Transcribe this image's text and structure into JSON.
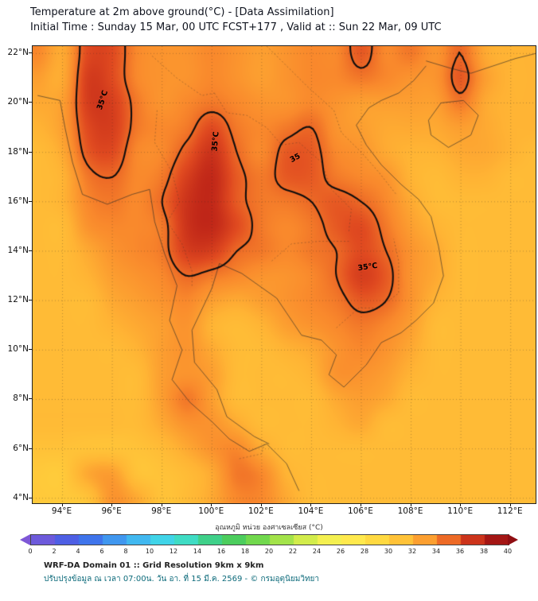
{
  "header": {
    "title_line1": "Temperature at 2m above ground(°C) - [Data Assimilation]",
    "title_line2": "Initial Time : Sunday 15 Mar, 00 UTC FCST+177 , Valid at :: Sun 22 Mar, 09 UTC"
  },
  "footer": {
    "line1": "WRF-DA Domain 01 :: Grid Resolution 9km x 9km",
    "line2": "ปรับปรุงข้อมูล ณ เวลา 07:00น. วัน อา. ที่ 15 มี.ค. 2569 - © กรมอุตุนิยมวิทยา"
  },
  "chart_data": {
    "type": "heatmap",
    "title": "Temperature at 2m above ground(°C)",
    "lon_range": [
      92.8,
      113.0
    ],
    "lat_range": [
      3.8,
      22.3
    ],
    "lon_ticks": [
      94,
      96,
      98,
      100,
      102,
      104,
      106,
      108,
      110,
      112
    ],
    "lon_tick_labels": [
      "94°E",
      "96°E",
      "98°E",
      "100°E",
      "102°E",
      "104°E",
      "106°E",
      "108°E",
      "110°E",
      "112°E"
    ],
    "lat_ticks": [
      4,
      6,
      8,
      10,
      12,
      14,
      16,
      18,
      20,
      22
    ],
    "lat_tick_labels": [
      "4°N",
      "6°N",
      "8°N",
      "10°N",
      "12°N",
      "14°N",
      "16°N",
      "18°N",
      "20°N",
      "22°N"
    ],
    "grid": {
      "lon_start": 93,
      "lon_step": 1,
      "lat_start": 22,
      "lat_step": -1,
      "values": [
        [
          34,
          32.5,
          36,
          36,
          34,
          33.5,
          33.5,
          34,
          33.5,
          33,
          33.5,
          34,
          34,
          35.5,
          34,
          34.5,
          33.5,
          35,
          32.5,
          32,
          32
        ],
        [
          33,
          32.5,
          36.5,
          36,
          34,
          33.5,
          33.5,
          34,
          33.5,
          33,
          33.5,
          34,
          34,
          34.5,
          34,
          33.5,
          33.5,
          35.5,
          33,
          32,
          32
        ],
        [
          32.5,
          33,
          36.5,
          36.5,
          34.5,
          33.5,
          34,
          34.5,
          34,
          33.5,
          33.5,
          34,
          33.5,
          33,
          33,
          33,
          33,
          34.5,
          32.5,
          32,
          32
        ],
        [
          32,
          33,
          36,
          36.5,
          34.5,
          34,
          34.5,
          36,
          34.5,
          34,
          34.5,
          35,
          33.5,
          33,
          32.5,
          32.5,
          32.5,
          33,
          32.5,
          32,
          32
        ],
        [
          31.5,
          32.5,
          35.5,
          36,
          34,
          34,
          35.5,
          37,
          35,
          34,
          35.5,
          35.5,
          34,
          33.5,
          32.5,
          32,
          32,
          32.5,
          32.5,
          32,
          31.5
        ],
        [
          31.5,
          32,
          34.5,
          35,
          34,
          34.5,
          36.5,
          37.5,
          35.5,
          34.5,
          35.5,
          35.5,
          34.5,
          34,
          33.5,
          32,
          31.5,
          32,
          32,
          31.5,
          31.5
        ],
        [
          31.5,
          32,
          34,
          34.5,
          34,
          35,
          37,
          37.5,
          35.5,
          34.5,
          34.5,
          35,
          35.5,
          35,
          34,
          32.5,
          31.5,
          31.5,
          31.5,
          31.5,
          31.5
        ],
        [
          31.5,
          31.5,
          33.5,
          34,
          34,
          34.5,
          37,
          37.5,
          36,
          34.5,
          34,
          34.5,
          35.5,
          36,
          34.5,
          33,
          32,
          31.5,
          31.5,
          31.5,
          31.5
        ],
        [
          31.5,
          31.5,
          32.5,
          33.5,
          34,
          34.5,
          36.5,
          36.5,
          35,
          34.5,
          34,
          34.5,
          35,
          36,
          35,
          33.5,
          32.5,
          31.5,
          31.5,
          31.5,
          31.5
        ],
        [
          31.5,
          31.5,
          32,
          33,
          33.5,
          34,
          35,
          34.5,
          34,
          33.5,
          33.5,
          34,
          35,
          36.5,
          35.5,
          33.5,
          32.5,
          31.5,
          31.5,
          31.5,
          31.5
        ],
        [
          31.5,
          31.5,
          31.5,
          32.5,
          33,
          33.5,
          34,
          33,
          32.5,
          33,
          33.5,
          34,
          34.5,
          35.5,
          35,
          33.5,
          32,
          31.5,
          31.5,
          31.5,
          31.5
        ],
        [
          31.5,
          31.5,
          31.5,
          32,
          32.5,
          33,
          33.5,
          32,
          31.5,
          32,
          33,
          33.5,
          34,
          34.5,
          34,
          33,
          31.5,
          31.5,
          31.5,
          31.5,
          31.5
        ],
        [
          31.5,
          31.5,
          31.5,
          31.5,
          32,
          33,
          33.5,
          32.5,
          31.5,
          31.5,
          32,
          32.5,
          33.5,
          34,
          33.5,
          32.5,
          31.5,
          31.5,
          31.5,
          31.5,
          31.5
        ],
        [
          31.5,
          31.5,
          31.5,
          31.5,
          31.5,
          33,
          33.5,
          33,
          31.5,
          31.5,
          31.5,
          32,
          33.5,
          33.5,
          33,
          32,
          31.5,
          31.5,
          31.5,
          31.5,
          31.5
        ],
        [
          31.5,
          31.5,
          31.5,
          31.5,
          31.5,
          33,
          34.5,
          33,
          31.5,
          31.5,
          31.5,
          31.5,
          32.5,
          33,
          32.5,
          31.5,
          31.5,
          31.5,
          31.5,
          31.5,
          31.5
        ],
        [
          31.5,
          31.5,
          31.5,
          31.5,
          31.5,
          32.5,
          33.5,
          33.5,
          32.5,
          31.5,
          31.5,
          31.5,
          32,
          32.5,
          31.5,
          31.5,
          31.5,
          31.5,
          31.5,
          31.5,
          31.5
        ],
        [
          31,
          31,
          31,
          31,
          31,
          31.5,
          32.5,
          33.5,
          34,
          32.5,
          31.5,
          31.5,
          31.5,
          31.5,
          31.5,
          31.5,
          31.5,
          31.5,
          31.5,
          31.5,
          31.5
        ],
        [
          30.5,
          30.5,
          32.5,
          33,
          31,
          31,
          31.5,
          32.5,
          34.5,
          34,
          32,
          31.5,
          31.5,
          31.5,
          31.5,
          31.5,
          31.5,
          31.5,
          31.5,
          31.5,
          31.5
        ],
        [
          30.5,
          30.5,
          31,
          33.5,
          32.5,
          31,
          31.5,
          32.5,
          34,
          34,
          32.5,
          31.5,
          31.5,
          31.5,
          31.5,
          31.5,
          31.5,
          31.5,
          31.5,
          31.5,
          31.5
        ]
      ]
    },
    "contour_level": 35,
    "contour_labels": [
      {
        "text": "35°C",
        "lon": 95.6,
        "lat": 20.1,
        "rot": -72
      },
      {
        "text": "35°C",
        "lon": 100.15,
        "lat": 18.45,
        "rot": -85
      },
      {
        "text": "35",
        "lon": 103.35,
        "lat": 17.75,
        "rot": -28
      },
      {
        "text": "35°C",
        "lon": 106.25,
        "lat": 13.35,
        "rot": -8
      }
    ],
    "colorbar": {
      "label": "อุณหภูมิ หน่วย องศาเซลเซียส (°C)",
      "ticks": [
        "0",
        "2",
        "4",
        "6",
        "8",
        "10",
        "12",
        "14",
        "16",
        "18",
        "20",
        "22",
        "24",
        "26",
        "28",
        "30",
        "32",
        "34",
        "36",
        "38",
        "40"
      ],
      "vmin": 0,
      "vmax": 40,
      "stops": [
        [
          0,
          "#7e57d6"
        ],
        [
          2,
          "#5c5ce0"
        ],
        [
          4,
          "#3f62e8"
        ],
        [
          6,
          "#3f86ee"
        ],
        [
          8,
          "#41a8f0"
        ],
        [
          10,
          "#41c8f0"
        ],
        [
          12,
          "#3fe0e0"
        ],
        [
          14,
          "#3fd8a8"
        ],
        [
          16,
          "#3fc86a"
        ],
        [
          18,
          "#58d24f"
        ],
        [
          20,
          "#8ade4a"
        ],
        [
          22,
          "#bce84a"
        ],
        [
          24,
          "#e8f04c"
        ],
        [
          26,
          "#fff054"
        ],
        [
          28,
          "#ffe246"
        ],
        [
          30,
          "#ffd03c"
        ],
        [
          32,
          "#ffb434"
        ],
        [
          34,
          "#f9892c"
        ],
        [
          36,
          "#e04a20"
        ],
        [
          38,
          "#b81e16"
        ],
        [
          40,
          "#8f0e12"
        ]
      ]
    },
    "coastline": [
      [
        [
          93.0,
          20.3
        ],
        [
          93.9,
          20.1
        ],
        [
          94.1,
          19.0
        ],
        [
          94.4,
          17.6
        ],
        [
          94.8,
          16.3
        ],
        [
          95.8,
          15.9
        ],
        [
          96.8,
          16.3
        ],
        [
          97.5,
          16.5
        ],
        [
          97.7,
          15.2
        ],
        [
          98.1,
          13.9
        ],
        [
          98.6,
          12.6
        ],
        [
          98.3,
          11.2
        ],
        [
          98.8,
          10.0
        ],
        [
          98.4,
          8.8
        ],
        [
          99.1,
          7.9
        ],
        [
          100.0,
          7.1
        ],
        [
          100.7,
          6.4
        ],
        [
          101.5,
          5.9
        ],
        [
          102.2,
          6.2
        ],
        [
          103.0,
          5.4
        ],
        [
          103.5,
          4.3
        ]
      ],
      [
        [
          100.3,
          13.5
        ],
        [
          100.0,
          12.5
        ],
        [
          99.2,
          10.8
        ],
        [
          99.3,
          9.5
        ],
        [
          100.2,
          8.4
        ],
        [
          100.6,
          7.3
        ],
        [
          101.7,
          6.5
        ],
        [
          102.3,
          6.2
        ]
      ],
      [
        [
          100.3,
          13.5
        ],
        [
          101.2,
          13.1
        ],
        [
          101.9,
          12.6
        ],
        [
          102.6,
          12.1
        ],
        [
          103.0,
          11.5
        ],
        [
          103.6,
          10.6
        ],
        [
          104.4,
          10.4
        ],
        [
          105.0,
          9.8
        ],
        [
          104.7,
          9.0
        ],
        [
          105.3,
          8.5
        ],
        [
          106.2,
          9.4
        ],
        [
          106.8,
          10.3
        ],
        [
          107.6,
          10.7
        ],
        [
          108.2,
          11.2
        ],
        [
          108.9,
          11.9
        ],
        [
          109.3,
          13.0
        ],
        [
          109.1,
          14.2
        ],
        [
          108.8,
          15.4
        ],
        [
          108.3,
          16.1
        ],
        [
          107.6,
          16.7
        ],
        [
          106.8,
          17.5
        ],
        [
          106.2,
          18.3
        ],
        [
          105.8,
          19.1
        ],
        [
          106.3,
          19.8
        ],
        [
          106.8,
          20.1
        ],
        [
          107.5,
          20.4
        ],
        [
          108.1,
          20.9
        ],
        [
          108.6,
          21.5
        ]
      ],
      [
        [
          108.7,
          19.3
        ],
        [
          109.2,
          20.0
        ],
        [
          110.1,
          20.1
        ],
        [
          110.7,
          19.5
        ],
        [
          110.4,
          18.7
        ],
        [
          109.5,
          18.2
        ],
        [
          108.8,
          18.7
        ],
        [
          108.7,
          19.3
        ]
      ],
      [
        [
          108.6,
          21.7
        ],
        [
          109.6,
          21.4
        ],
        [
          110.4,
          21.2
        ],
        [
          111.3,
          21.5
        ],
        [
          112.2,
          21.8
        ],
        [
          113.0,
          22.0
        ]
      ]
    ],
    "borders": [
      [
        [
          97.8,
          19.7
        ],
        [
          97.7,
          18.4
        ],
        [
          98.4,
          17.2
        ],
        [
          98.7,
          16.0
        ],
        [
          98.2,
          15.2
        ],
        [
          98.8,
          14.3
        ],
        [
          99.2,
          13.2
        ],
        [
          99.2,
          12.6
        ]
      ],
      [
        [
          100.1,
          20.4
        ],
        [
          100.6,
          19.6
        ],
        [
          101.4,
          19.5
        ],
        [
          102.2,
          19.0
        ],
        [
          102.8,
          18.3
        ],
        [
          103.5,
          18.4
        ],
        [
          104.4,
          17.6
        ],
        [
          104.8,
          16.5
        ],
        [
          105.6,
          15.7
        ],
        [
          105.5,
          14.8
        ]
      ],
      [
        [
          102.4,
          13.6
        ],
        [
          103.2,
          14.3
        ],
        [
          104.3,
          14.4
        ],
        [
          105.5,
          14.4
        ]
      ],
      [
        [
          105.0,
          10.9
        ],
        [
          105.9,
          11.7
        ],
        [
          106.7,
          11.7
        ],
        [
          107.5,
          12.3
        ],
        [
          107.5,
          13.6
        ],
        [
          107.3,
          14.5
        ]
      ],
      [
        [
          102.2,
          22.3
        ],
        [
          103.0,
          21.5
        ],
        [
          103.9,
          20.6
        ],
        [
          104.9,
          19.7
        ],
        [
          105.2,
          18.8
        ],
        [
          106.0,
          18.0
        ],
        [
          106.7,
          17.2
        ],
        [
          107.4,
          16.3
        ]
      ],
      [
        [
          97.6,
          21.9
        ],
        [
          98.6,
          21.0
        ],
        [
          99.6,
          20.3
        ],
        [
          100.1,
          20.4
        ]
      ],
      [
        [
          101.1,
          5.6
        ],
        [
          102.0,
          5.8
        ],
        [
          102.1,
          6.2
        ]
      ]
    ]
  }
}
